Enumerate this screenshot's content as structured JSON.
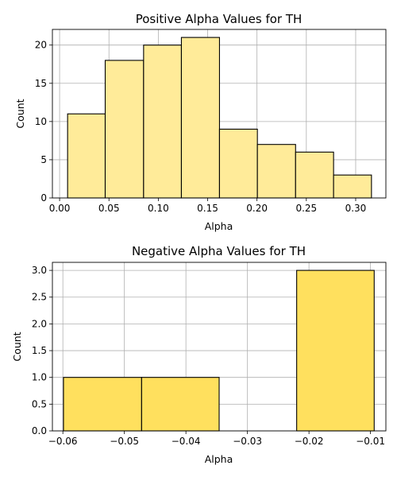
{
  "chart_data": [
    {
      "type": "bar",
      "title": "Positive Alpha Values for TH",
      "xlabel": "Alpha",
      "ylabel": "Count",
      "xlim": [
        -0.0073,
        0.3306
      ],
      "ylim": [
        0,
        22.05
      ],
      "xticks": [
        "0.00",
        "0.05",
        "0.10",
        "0.15",
        "0.20",
        "0.25",
        "0.30"
      ],
      "yticks": [
        "0",
        "5",
        "10",
        "15",
        "20"
      ],
      "bins": [
        {
          "x0": 0.0081,
          "x1": 0.0462,
          "value": 11
        },
        {
          "x0": 0.0462,
          "x1": 0.0851,
          "value": 18
        },
        {
          "x0": 0.0851,
          "x1": 0.1234,
          "value": 20
        },
        {
          "x0": 0.1234,
          "x1": 0.162,
          "value": 21
        },
        {
          "x0": 0.162,
          "x1": 0.2004,
          "value": 9
        },
        {
          "x0": 0.2004,
          "x1": 0.2391,
          "value": 7
        },
        {
          "x0": 0.2391,
          "x1": 0.2776,
          "value": 6
        },
        {
          "x0": 0.2776,
          "x1": 0.316,
          "value": 3
        }
      ],
      "grid": true,
      "colors": {
        "fill": "#ffeb99",
        "edge": "#000000",
        "grid": "#b0b0b0"
      }
    },
    {
      "type": "bar",
      "title": "Negative Alpha Values for TH",
      "xlabel": "Alpha",
      "ylabel": "Count",
      "xlim": [
        -0.0617,
        -0.0075
      ],
      "ylim": [
        0,
        3.15
      ],
      "xticks": [
        "−0.06",
        "−0.05",
        "−0.04",
        "−0.03",
        "−0.02",
        "−0.01"
      ],
      "yticks": [
        "0.0",
        "0.5",
        "1.0",
        "1.5",
        "2.0",
        "2.5",
        "3.0"
      ],
      "bins": [
        {
          "x0": -0.0599,
          "x1": -0.0472,
          "value": 1
        },
        {
          "x0": -0.0472,
          "x1": -0.0346,
          "value": 1
        },
        {
          "x0": -0.0346,
          "x1": -0.022,
          "value": 0
        },
        {
          "x0": -0.022,
          "x1": -0.0094,
          "value": 3
        }
      ],
      "grid": true,
      "colors": {
        "fill": "#ffe05e",
        "edge": "#000000",
        "grid": "#b0b0b0"
      }
    }
  ]
}
